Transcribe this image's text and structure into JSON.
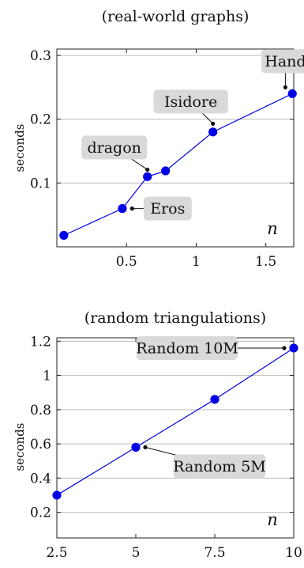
{
  "chart_data": [
    {
      "type": "line",
      "title": "(real-world graphs)",
      "ylabel": "seconds",
      "xlabel": "n",
      "xlim": [
        0,
        1.7
      ],
      "ylim": [
        0,
        0.31
      ],
      "xticks": [
        0.5,
        1,
        1.5
      ],
      "xtick_labels": [
        "0.5",
        "1",
        "1.5"
      ],
      "yticks": [
        0.1,
        0.2,
        0.3
      ],
      "ytick_labels": [
        "0.1",
        "0.2",
        "0.3"
      ],
      "grid": "horizontal",
      "color": "#0000e6",
      "series": [
        {
          "x": [
            0.05,
            0.47,
            0.65,
            0.78,
            1.12,
            1.69
          ],
          "y": [
            0.018,
            0.06,
            0.11,
            0.119,
            0.18,
            0.24
          ]
        }
      ],
      "annotations": [
        {
          "text": "Hand",
          "x": 1.64,
          "y": 0.25
        },
        {
          "text": "Isidore",
          "x": 1.12,
          "y": 0.193
        },
        {
          "text": "dragon",
          "x": 0.65,
          "y": 0.121
        },
        {
          "text": "Eros",
          "x": 0.54,
          "y": 0.06
        }
      ]
    },
    {
      "type": "line",
      "title": "(random triangulations)",
      "ylabel": "seconds",
      "xlabel": "n",
      "xlim": [
        2.5,
        10
      ],
      "ylim": [
        0.05,
        1.22
      ],
      "xticks": [
        2.5,
        5,
        7.5,
        10
      ],
      "xtick_labels": [
        "2.5",
        "5",
        "7.5",
        "10"
      ],
      "yticks": [
        0.2,
        0.4,
        0.6,
        0.8,
        1,
        1.2
      ],
      "ytick_labels": [
        "0.2",
        "0.4",
        "0.6",
        "0.8",
        "1",
        "1.2"
      ],
      "grid": "horizontal",
      "color": "#0000e6",
      "series": [
        {
          "x": [
            2.5,
            5,
            7.5,
            10
          ],
          "y": [
            0.3,
            0.58,
            0.86,
            1.16
          ]
        }
      ],
      "annotations": [
        {
          "text": "Random 10M",
          "x": 9.7,
          "y": 1.16
        },
        {
          "text": "Random 5M",
          "x": 5.3,
          "y": 0.58
        }
      ]
    }
  ]
}
